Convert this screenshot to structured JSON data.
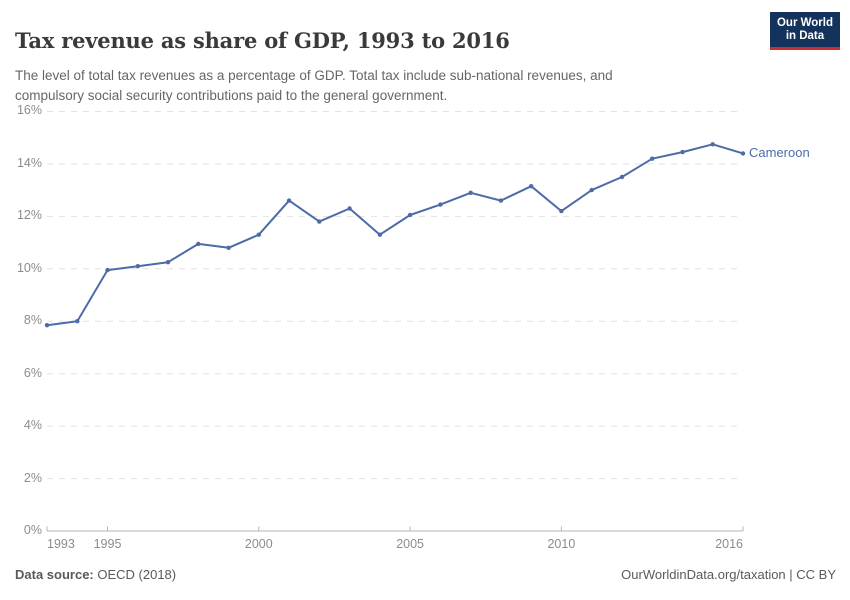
{
  "header": {
    "title": "Tax revenue as share of GDP, 1993 to 2016",
    "subtitle_line1": "The level of total tax revenues as a percentage of GDP. Total tax include sub-national revenues, and",
    "subtitle_line2": "compulsory social security contributions paid to the general government.",
    "logo": {
      "line1": "Our World",
      "line2": "in Data"
    }
  },
  "chart_data": {
    "type": "line",
    "title": "Tax revenue as share of GDP, 1993 to 2016",
    "xlabel": "",
    "ylabel": "",
    "x": [
      1993,
      1994,
      1995,
      1996,
      1997,
      1998,
      1999,
      2000,
      2001,
      2002,
      2003,
      2004,
      2005,
      2006,
      2007,
      2008,
      2009,
      2010,
      2011,
      2012,
      2013,
      2014,
      2015,
      2016
    ],
    "series": [
      {
        "name": "Cameroon",
        "color": "#4c6ba8",
        "values": [
          7.85,
          8.0,
          9.95,
          10.1,
          10.25,
          10.95,
          10.8,
          11.3,
          12.6,
          11.8,
          12.3,
          11.3,
          12.05,
          12.45,
          12.9,
          12.6,
          13.15,
          12.2,
          13.0,
          13.5,
          14.2,
          14.45,
          14.75,
          14.4
        ]
      }
    ],
    "xlim": [
      1993,
      2016
    ],
    "ylim": [
      0,
      16
    ],
    "ytick_values": [
      0,
      2,
      4,
      6,
      8,
      10,
      12,
      14,
      16
    ],
    "ytick_labels": [
      "0%",
      "2%",
      "4%",
      "6%",
      "8%",
      "10%",
      "12%",
      "14%",
      "16%"
    ],
    "xtick_values": [
      1993,
      1995,
      2000,
      2005,
      2010,
      2016
    ],
    "xtick_labels": [
      "1993",
      "1995",
      "2000",
      "2005",
      "2010",
      "2016"
    ],
    "grid": "horizontal-dashed",
    "legend_position": "end-of-line-label"
  },
  "footer": {
    "source_label": "Data source:",
    "source_value": " OECD (2018)",
    "credit": "OurWorldinData.org/taxation | CC BY"
  },
  "colors": {
    "series_line": "#4c6ba8",
    "grid_line": "#e2e2e2",
    "axis_line": "#b5b5b5",
    "tick_label": "#8c8c8c",
    "title_text": "#3a3a3a",
    "subtitle_text": "#666666",
    "footer_text": "#5a5a5a",
    "logo_background": "#14335c",
    "logo_bar": "#cf2d2d"
  }
}
